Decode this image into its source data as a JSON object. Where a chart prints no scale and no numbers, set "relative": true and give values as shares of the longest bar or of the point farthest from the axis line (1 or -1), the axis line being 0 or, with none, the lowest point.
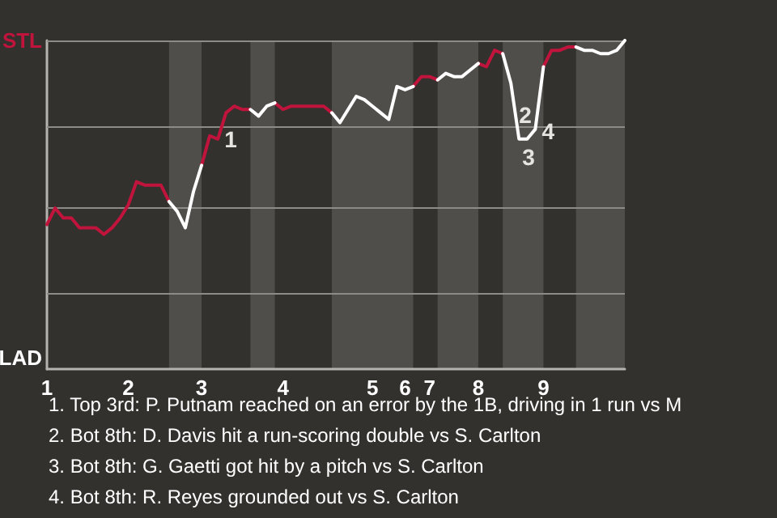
{
  "chart_data": {
    "type": "line",
    "relative": true,
    "categories": [
      "1",
      null,
      null,
      null,
      null,
      null,
      null,
      null,
      null,
      null,
      "2",
      null,
      null,
      null,
      null,
      null,
      null,
      null,
      null,
      "3",
      null,
      null,
      null,
      null,
      null,
      null,
      null,
      null,
      null,
      "4",
      null,
      null,
      null,
      null,
      null,
      null,
      null,
      null,
      null,
      null,
      "5",
      null,
      null,
      null,
      "6",
      null,
      null,
      "7",
      null,
      null,
      null,
      null,
      null,
      "8",
      null,
      null,
      null,
      null,
      null,
      null,
      null,
      "9",
      null,
      null,
      null,
      null,
      null,
      null,
      null,
      null,
      null,
      null
    ],
    "ref_lines": [
      {
        "axis": "y",
        "value": 0.23,
        "color": "#8d8b88"
      },
      {
        "axis": "y",
        "value": 0.49,
        "color": "#8d8b88"
      },
      {
        "axis": "y",
        "value": 0.74,
        "color": "#8d8b88"
      },
      {
        "axis": "y",
        "value": 1,
        "color": "#8d8b88"
      }
    ],
    "marker": "none",
    "line_style": "solid",
    "series": [
      {
        "color": "#c0143c",
        "values": [
          0.44,
          0.49,
          0.46,
          0.46,
          0.43,
          0.43,
          0.43,
          0.41,
          0.43,
          0.46,
          0.5,
          0.57,
          0.56,
          0.56,
          0.56,
          0.51,
          null,
          null,
          null,
          0.62,
          0.71,
          0.7,
          0.78,
          0.8,
          0.79,
          0.79,
          null,
          null,
          0.81,
          0.79,
          0.8,
          0.8,
          0.8,
          0.8,
          0.8,
          0.78,
          null,
          null,
          null,
          null,
          null,
          null,
          null,
          null,
          null,
          0.86,
          0.89,
          0.89,
          0.88,
          null,
          null,
          null,
          null,
          0.93,
          0.92,
          0.97,
          0.96,
          null,
          null,
          null,
          null,
          0.92,
          0.97,
          0.97,
          0.98,
          0.98,
          null,
          null,
          null,
          null,
          null,
          null
        ]
      },
      {
        "color": "#ffffff",
        "values": [
          null,
          null,
          null,
          null,
          null,
          null,
          null,
          null,
          null,
          null,
          null,
          null,
          null,
          null,
          null,
          0.51,
          0.48,
          0.43,
          0.54,
          0.62,
          null,
          null,
          null,
          null,
          null,
          0.79,
          0.77,
          0.8,
          0.81,
          null,
          null,
          null,
          null,
          null,
          null,
          0.78,
          0.75,
          0.79,
          0.83,
          0.82,
          0.8,
          0.78,
          0.76,
          0.86,
          0.85,
          0.86,
          null,
          null,
          0.88,
          0.9,
          0.89,
          0.89,
          0.91,
          0.93,
          null,
          null,
          0.96,
          0.87,
          0.7,
          0.7,
          0.73,
          0.92,
          null,
          null,
          null,
          0.98,
          0.97,
          0.97,
          0.96,
          0.96,
          0.97,
          1
        ]
      }
    ],
    "annotations": [
      "1",
      "2",
      "3",
      "4",
      "STL",
      "LAD",
      "1. Top 3rd: P. Putnam reached on an error by the 1B, driving in 1 run vs M",
      "2. Bot 8th: D. Davis hit a run-scoring double vs S. Carlton",
      "3. Bot 8th: G. Gaetti got hit by a pitch vs S. Carlton",
      "4. Bot 8th: R. Reyes grounded out vs S. Carlton"
    ]
  }
}
